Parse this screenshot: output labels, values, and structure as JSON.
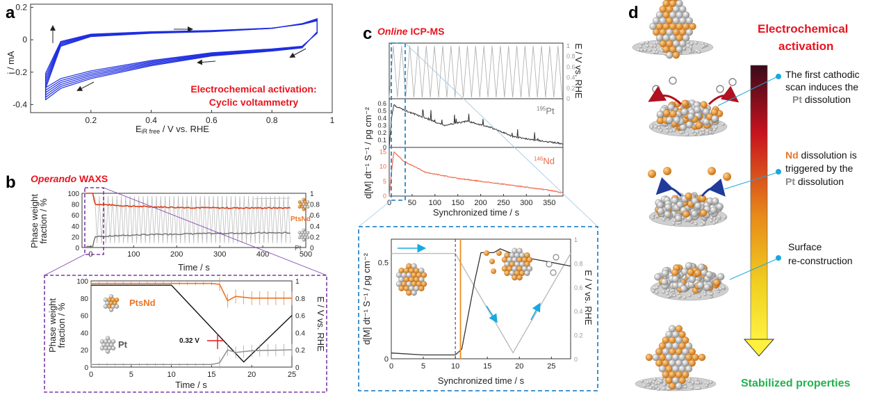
{
  "panels": {
    "a": {
      "letter": "a",
      "ylabel": "i / mA",
      "xlabel_main": "E",
      "xlabel_sub": "iR free",
      "xlabel_rest": " / V vs. RHE",
      "note_line1": "Electrochemical activation:",
      "note_line2": "Cyclic voltammetry",
      "xticks": [
        "0.2",
        "0.4",
        "0.6",
        "0.8",
        "1"
      ],
      "yticks": [
        "0.2",
        "0",
        "-0.2",
        "-0.4"
      ]
    },
    "b": {
      "letter": "b",
      "title_italic": "Operando",
      "title_rest": " WAXS",
      "ylabel_l1": "Phase weight",
      "ylabel_l2": "fraction / %",
      "xlabel": "Time / s",
      "xticks": [
        "0",
        "100",
        "200",
        "300",
        "400",
        "500"
      ],
      "yticks_left": [
        "100",
        "80",
        "60",
        "40",
        "20",
        "0"
      ],
      "yticks_right": [
        "1",
        "0.8",
        "0.6",
        "0.4",
        "0.2",
        "0"
      ],
      "legend_ptnd": "PtsNd",
      "legend_pt": "Pt"
    },
    "b_inset": {
      "ylabel_l1": "Phase weight",
      "ylabel_l2": "fraction / %",
      "ylabel_right": "E / V vs. RHE",
      "xlabel": "Time / s",
      "xticks": [
        "0",
        "5",
        "10",
        "15",
        "20",
        "25"
      ],
      "yticks_left": [
        "100",
        "80",
        "60",
        "40",
        "20",
        "0"
      ],
      "yticks_right": [
        "1",
        "0.8",
        "0.6",
        "0.4",
        "0.2",
        "0"
      ],
      "legend_ptnd": "PtsNd",
      "legend_pt": "Pt",
      "marker_label": "0.32 V"
    },
    "c": {
      "letter": "c",
      "title_italic": "Online",
      "title_rest": " ICP-MS",
      "xlabel": "Synchronized time / s",
      "ylabel": "d[M] dt⁻¹ S⁻¹ / pg cm⁻²",
      "ylabel_right": "E / V vs. RHE",
      "xticks": [
        "0",
        "50",
        "100",
        "150",
        "200",
        "250",
        "300",
        "350"
      ],
      "eticks": [
        "1",
        "0.8",
        "0.6",
        "0.4",
        "0.2",
        "0"
      ],
      "pt_ticks": [
        "0.6",
        "0.5",
        "0.4",
        "0.3",
        "0.2",
        "0.1",
        "0"
      ],
      "nd_ticks": [
        "15",
        "10",
        "5",
        "0"
      ],
      "pt_sup": "195",
      "pt_label": "Pt",
      "nd_sup": "146",
      "nd_label": "Nd"
    },
    "c_inset": {
      "xlabel": "Synchronized time / s",
      "ylabel": "d[M] dt⁻¹ S⁻¹ / pg cm⁻²",
      "ylabel_right": "E / V vs. RHE",
      "xticks": [
        "0",
        "5",
        "10",
        "15",
        "20",
        "25"
      ],
      "yticks": [
        "0.5",
        "0"
      ],
      "yticks_right": [
        "1",
        "0.8",
        "0.6",
        "0.4",
        "0.2",
        "0"
      ]
    },
    "d": {
      "letter": "d",
      "header_l1": "Electrochemical",
      "header_l2": "activation",
      "step1_l1": "The first cathodic",
      "step1_l2": "scan induces the",
      "step1_pt": "Pt",
      "step1_l3": " dissolution",
      "step2_nd": "Nd",
      "step2_l1": " dissolution is",
      "step2_l2": "triggered by the",
      "step2_pt": "Pt",
      "step2_l3": " dissolution",
      "step3_l1": "Surface",
      "step3_l2": "re-construction",
      "footer": "Stabilized  properties"
    }
  },
  "colors": {
    "cv": "#1f2fe0",
    "ptnd": "#e8762a",
    "ptnd_line": "#e03a10",
    "pt": "#6e6e6e",
    "red": "#e8141e",
    "green": "#22b24c",
    "dash_blue": "#2a87c8",
    "dash_purple": "#7a3aa8",
    "nd_curve": "#f06a4c",
    "inset_orange": "#f08a1a",
    "arrow_cyan": "#19a8e0"
  },
  "chart_data": [
    {
      "type": "line",
      "panel": "a",
      "xlabel": "EiR free / V vs. RHE",
      "ylabel": "i / mA",
      "xlim": [
        0,
        1
      ],
      "ylim": [
        -0.45,
        0.22
      ],
      "series": [
        {
          "values_forward": [
            [
              0.05,
              -0.3
            ],
            [
              0.1,
              -0.04
            ],
            [
              0.2,
              0.02
            ],
            [
              0.4,
              0.04
            ],
            [
              0.6,
              0.05
            ],
            [
              0.8,
              0.07
            ],
            [
              0.9,
              0.1
            ],
            [
              0.95,
              0.13
            ]
          ],
          "values_backward": [
            [
              0.95,
              0.05
            ],
            [
              0.9,
              -0.05
            ],
            [
              0.8,
              -0.07
            ],
            [
              0.6,
              -0.1
            ],
            [
              0.4,
              -0.16
            ],
            [
              0.2,
              -0.24
            ],
            [
              0.1,
              -0.3
            ],
            [
              0.05,
              -0.37
            ]
          ]
        }
      ]
    },
    {
      "type": "line",
      "panel": "b",
      "xlabel": "Time / s",
      "ylabel": "Phase weight fraction / %",
      "xlim": [
        -20,
        500
      ],
      "ylim": [
        0,
        100
      ],
      "series": [
        {
          "name": "PtsNd",
          "values": [
            [
              -10,
              100
            ],
            [
              5,
              100
            ],
            [
              10,
              80
            ],
            [
              100,
              76
            ],
            [
              200,
              74
            ],
            [
              300,
              73
            ],
            [
              400,
              73
            ],
            [
              465,
              73
            ]
          ]
        },
        {
          "name": "Pt",
          "values": [
            [
              -10,
              2
            ],
            [
              5,
              2
            ],
            [
              10,
              20
            ],
            [
              100,
              23
            ],
            [
              200,
              25
            ],
            [
              300,
              26
            ],
            [
              400,
              27
            ],
            [
              465,
              27
            ]
          ]
        }
      ]
    },
    {
      "type": "line",
      "panel": "b_inset",
      "xlabel": "Time / s",
      "xlim": [
        0,
        25
      ],
      "series": [
        {
          "name": "PtsNd",
          "values": [
            [
              0,
              97
            ],
            [
              5,
              97
            ],
            [
              10,
              97
            ],
            [
              15,
              97
            ],
            [
              16,
              96
            ],
            [
              17,
              77
            ],
            [
              18,
              82
            ],
            [
              20,
              80
            ],
            [
              25,
              80
            ]
          ]
        },
        {
          "name": "Pt",
          "values": [
            [
              0,
              3
            ],
            [
              5,
              3
            ],
            [
              10,
              3
            ],
            [
              15,
              3
            ],
            [
              16,
              5
            ],
            [
              17,
              20
            ],
            [
              18,
              17
            ],
            [
              20,
              19
            ],
            [
              25,
              20
            ]
          ]
        },
        {
          "name": "E",
          "values": [
            [
              0,
              0.95
            ],
            [
              8,
              0.95
            ],
            [
              10,
              0.95
            ],
            [
              19,
              0.06
            ],
            [
              25,
              0.6
            ]
          ]
        }
      ]
    },
    {
      "type": "line",
      "panel": "c",
      "xlabel": "Synchronized time / s",
      "xlim": [
        0,
        380
      ],
      "series": [
        {
          "name": "195Pt",
          "values": [
            [
              0,
              0
            ],
            [
              5,
              0.4
            ],
            [
              10,
              0.58
            ],
            [
              30,
              0.52
            ],
            [
              80,
              0.4
            ],
            [
              120,
              0.3
            ],
            [
              170,
              0.36
            ],
            [
              220,
              0.28
            ],
            [
              270,
              0.15
            ],
            [
              320,
              0.1
            ],
            [
              380,
              0.05
            ]
          ]
        },
        {
          "name": "146Nd",
          "values": [
            [
              0,
              0
            ],
            [
              5,
              8
            ],
            [
              10,
              15
            ],
            [
              30,
              12
            ],
            [
              80,
              8
            ],
            [
              150,
              6
            ],
            [
              200,
              5
            ],
            [
              250,
              4
            ],
            [
              300,
              3
            ],
            [
              350,
              2
            ],
            [
              380,
              1
            ]
          ]
        }
      ]
    },
    {
      "type": "line",
      "panel": "c_inset",
      "xlabel": "Synchronized time / s",
      "xlim": [
        0,
        28
      ],
      "series": [
        {
          "name": "Pt",
          "values": [
            [
              0,
              0.03
            ],
            [
              5,
              0.02
            ],
            [
              10,
              0.02
            ],
            [
              11,
              0.05
            ],
            [
              13,
              0.4
            ],
            [
              14,
              0.55
            ],
            [
              16,
              0.55
            ],
            [
              17,
              0.57
            ],
            [
              20,
              0.53
            ],
            [
              25,
              0.5
            ],
            [
              28,
              0.48
            ]
          ]
        },
        {
          "name": "E",
          "values": [
            [
              0,
              0.88
            ],
            [
              10,
              0.88
            ],
            [
              19,
              0.05
            ],
            [
              28,
              0.88
            ]
          ]
        }
      ]
    }
  ]
}
